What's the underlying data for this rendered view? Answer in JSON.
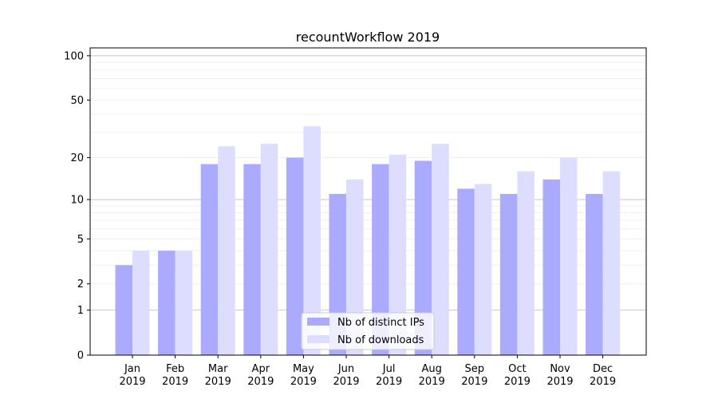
{
  "chart_data": {
    "type": "bar",
    "title": "recountWorkflow 2019",
    "xlabel": "",
    "ylabel": "",
    "scale": "log(1+y)",
    "ylim": [
      0,
      113
    ],
    "yticks": [
      0,
      1,
      2,
      5,
      10,
      20,
      50,
      100
    ],
    "categories": [
      "Jan\n2019",
      "Feb\n2019",
      "Mar\n2019",
      "Apr\n2019",
      "May\n2019",
      "Jun\n2019",
      "Jul\n2019",
      "Aug\n2019",
      "Sep\n2019",
      "Oct\n2019",
      "Nov\n2019",
      "Dec\n2019"
    ],
    "series": [
      {
        "name": "Nb of distinct IPs",
        "color": "#aaaaff",
        "values": [
          3,
          4,
          18,
          18,
          20,
          11,
          18,
          19,
          12,
          11,
          14,
          11
        ]
      },
      {
        "name": "Nb of downloads",
        "color": "#ddddff",
        "values": [
          4,
          4,
          24,
          25,
          33,
          14,
          21,
          25,
          13,
          16,
          20,
          16
        ]
      }
    ],
    "legend": "bottom-center",
    "grid": true
  }
}
